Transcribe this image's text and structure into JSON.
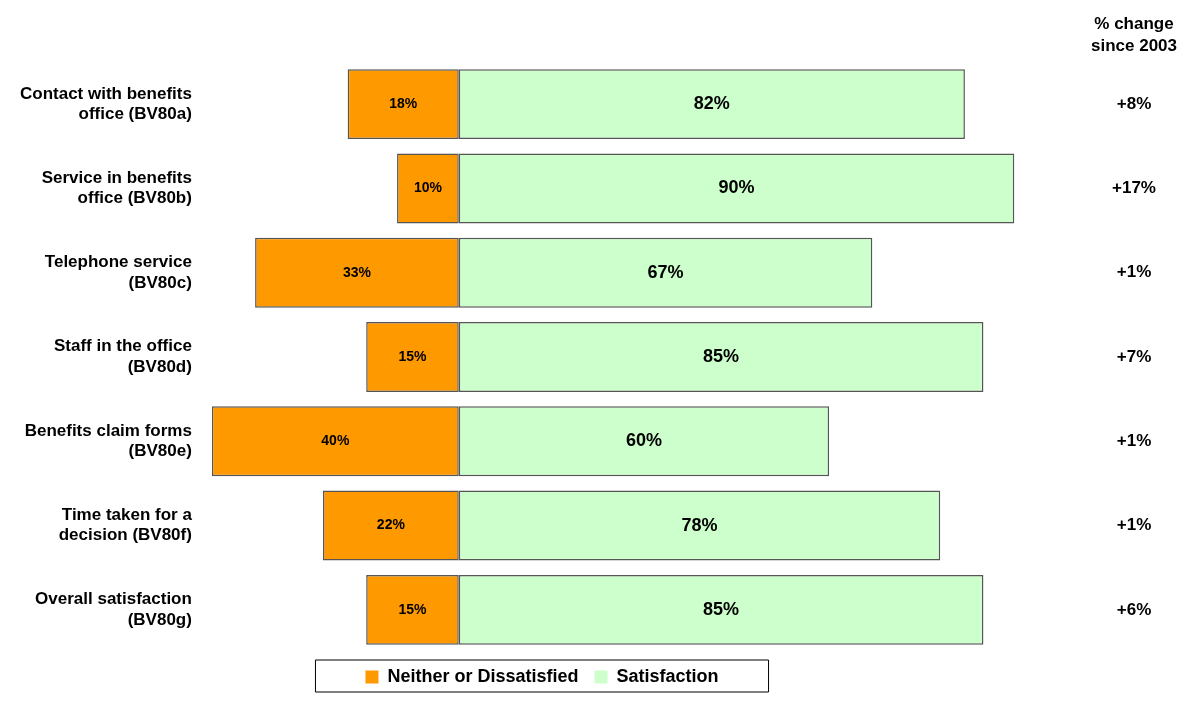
{
  "chart_data": {
    "type": "bar",
    "orientation": "horizontal",
    "categories": [
      "Contact with benefits office (BV80a)",
      "Service in benefits office (BV80b)",
      "Telephone service (BV80c)",
      "Staff in the office (BV80d)",
      "Benefits claim forms (BV80e)",
      "Time taken for a decision (BV80f)",
      "Overall satisfaction (BV80g)"
    ],
    "series": [
      {
        "name": "Neither or Dissatisfied",
        "color": "#ff9900",
        "values": [
          -18,
          -10,
          -33,
          -15,
          -40,
          -22,
          -15
        ]
      },
      {
        "name": "Satisfaction",
        "color": "#ccffcc",
        "values": [
          82,
          90,
          67,
          85,
          60,
          78,
          85
        ],
        "value_labels": [
          "82%",
          "90%",
          "67%",
          "85%",
          "60%",
          "78%",
          "85%"
        ]
      }
    ],
    "stacked": true,
    "tick_labels": "y",
    "legend": "bottom",
    "annotations": [
      "% change since 2003",
      "+8%",
      "+17%",
      "+1%",
      "+7%",
      "+1%",
      "+1%",
      "+6%",
      {
        "text": "18%",
        "x": -9,
        "y": "Contact with benefits office (BV80a)"
      },
      {
        "text": "10%",
        "x": -5,
        "y": "Service in benefits office (BV80b)"
      },
      {
        "text": "33%",
        "x": -16.5,
        "y": "Telephone service (BV80c)"
      },
      {
        "text": "15%",
        "x": -7.5,
        "y": "Staff in the office (BV80d)"
      },
      {
        "text": "40%",
        "x": -20,
        "y": "Benefits claim forms (BV80e)"
      },
      {
        "text": "22%",
        "x": -11,
        "y": "Time taken for a decision (BV80f)"
      },
      {
        "text": "15%",
        "x": -7.5,
        "y": "Overall satisfaction (BV80g)"
      }
    ]
  }
}
